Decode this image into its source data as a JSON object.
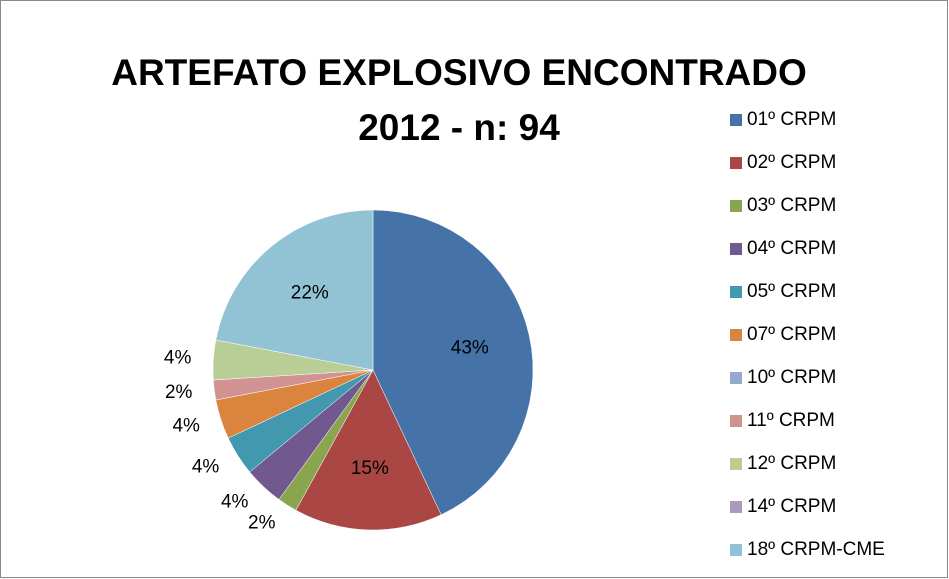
{
  "chart_data": {
    "type": "pie",
    "title": "ARTEFATO EXPLOSIVO ENCONTRADO",
    "subtitle": "2012 - n: 94",
    "categories": [
      "01º CRPM",
      "02º CRPM",
      "03º CRPM",
      "04º CRPM",
      "05º CRPM",
      "07º CRPM",
      "10º CRPM",
      "11º CRPM",
      "12º CRPM",
      "14º CRPM",
      "18º CRPM-CME"
    ],
    "values": [
      43,
      15,
      2,
      4,
      4,
      4,
      0,
      2,
      4,
      0,
      22
    ],
    "value_labels": [
      "43%",
      "15%",
      "2%",
      "4%",
      "4%",
      "4%",
      null,
      "2%",
      "4%",
      null,
      "22%"
    ],
    "colors": [
      "#4572a7",
      "#aa4643",
      "#89a54e",
      "#71588f",
      "#4198af",
      "#db843d",
      "#93a9cf",
      "#d19392",
      "#b9cd96",
      "#a99bbd",
      "#92c3d5"
    ],
    "legend": "right"
  }
}
